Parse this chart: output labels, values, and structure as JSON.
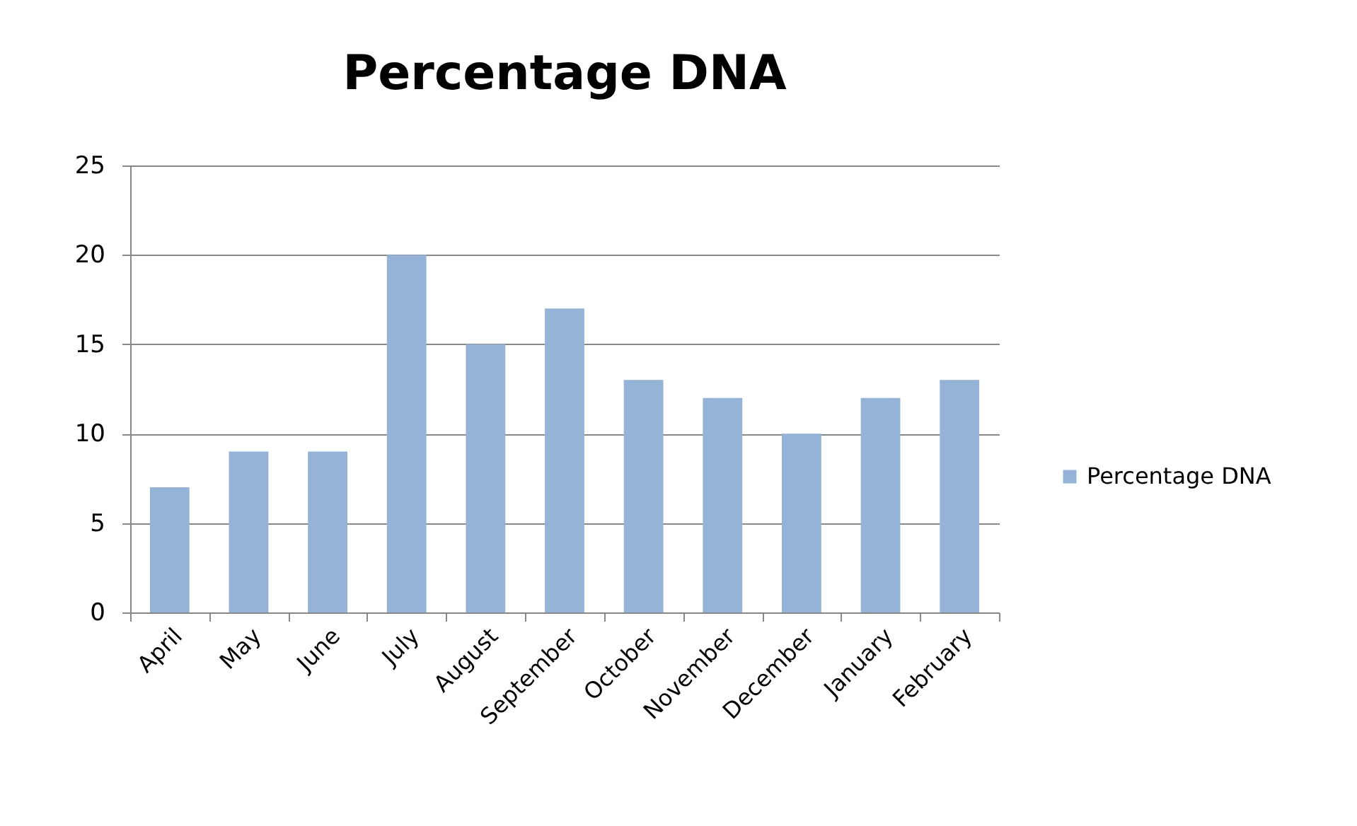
{
  "chart_data": {
    "type": "bar",
    "title": "Percentage DNA",
    "categories": [
      "April",
      "May",
      "June",
      "July",
      "August",
      "September",
      "October",
      "November",
      "December",
      "January",
      "February"
    ],
    "series": [
      {
        "name": "Percentage DNA",
        "color": "#95b3d7",
        "values": [
          7,
          9,
          9,
          20,
          15,
          17,
          13,
          12,
          10,
          12,
          13
        ]
      }
    ],
    "ylim": [
      0,
      25
    ],
    "yticks": [
      0,
      5,
      10,
      15,
      20,
      25
    ],
    "grid": "y",
    "legend": "right"
  }
}
